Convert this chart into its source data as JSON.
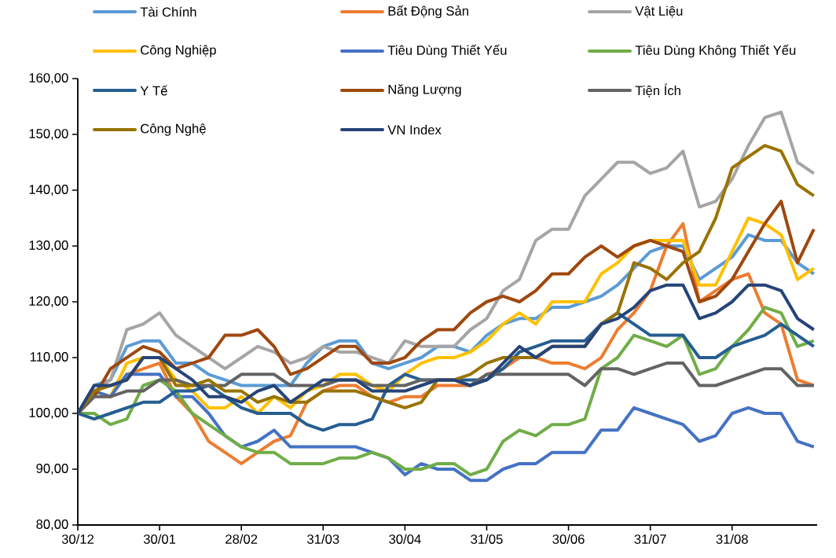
{
  "chart_data": {
    "type": "line",
    "legend": "top",
    "marker": "none",
    "line_style": "solid",
    "categories": [
      "30/12",
      null,
      null,
      null,
      null,
      "30/01",
      null,
      null,
      null,
      null,
      "28/02",
      null,
      null,
      null,
      null,
      "31/03",
      null,
      null,
      null,
      null,
      "30/04",
      null,
      null,
      null,
      null,
      "31/05",
      null,
      null,
      null,
      null,
      "30/06",
      null,
      null,
      null,
      null,
      "31/07",
      null,
      null,
      null,
      null,
      "31/08",
      null,
      null,
      null,
      null,
      null
    ],
    "ylim": [
      80,
      160
    ],
    "yticks": [
      {
        "value": 80,
        "label": "80,00"
      },
      {
        "value": 90,
        "label": "90,00"
      },
      {
        "value": 100,
        "label": "100,00"
      },
      {
        "value": 110,
        "label": "110,00"
      },
      {
        "value": 120,
        "label": "120,00"
      },
      {
        "value": 130,
        "label": "130,00"
      },
      {
        "value": 140,
        "label": "140,00"
      },
      {
        "value": 150,
        "label": "150,00"
      },
      {
        "value": 160,
        "label": "160,00"
      }
    ],
    "series": [
      {
        "name": "Tài Chính",
        "color": "#5b9bd5",
        "values": [
          100,
          105,
          106,
          112,
          113,
          113,
          109,
          109,
          107,
          106,
          105,
          105,
          105,
          105,
          109,
          112,
          113,
          113,
          109,
          108,
          109,
          110,
          112,
          112,
          111,
          114,
          116,
          117,
          117,
          119,
          119,
          120,
          121,
          123,
          126,
          129,
          130,
          130,
          124,
          126,
          128,
          132,
          131,
          131,
          127,
          125
        ]
      },
      {
        "name": "Bất Động Sản",
        "color": "#ed7d31",
        "values": [
          null,
          null,
          103,
          107,
          108,
          109,
          103,
          100,
          95,
          93,
          91,
          93,
          95,
          96,
          102,
          104,
          105,
          105,
          103,
          102,
          103,
          103,
          105,
          105,
          105,
          107,
          108,
          110,
          110,
          109,
          109,
          108,
          110,
          115,
          118,
          122,
          130,
          134,
          120,
          122,
          124,
          125,
          118,
          116,
          106,
          105
        ]
      },
      {
        "name": "Vật Liệu",
        "color": "#a5a5a5",
        "values": [
          100,
          104,
          106,
          115,
          116,
          118,
          114,
          112,
          110,
          108,
          110,
          112,
          111,
          109,
          110,
          112,
          111,
          111,
          110,
          109,
          113,
          112,
          112,
          112,
          115,
          117,
          122,
          124,
          131,
          133,
          133,
          139,
          142,
          145,
          145,
          143,
          144,
          147,
          137,
          138,
          142,
          148,
          153,
          154,
          145,
          143
        ]
      },
      {
        "name": "Công Nghiệp",
        "color": "#ffc000",
        "values": [
          100,
          104,
          103,
          109,
          110,
          110,
          106,
          104,
          101,
          101,
          103,
          100,
          103,
          101,
          104,
          105,
          107,
          107,
          105,
          104,
          107,
          109,
          110,
          110,
          111,
          113,
          116,
          118,
          116,
          120,
          120,
          120,
          125,
          127,
          130,
          131,
          131,
          131,
          123,
          123,
          129,
          135,
          134,
          132,
          124,
          126
        ]
      },
      {
        "name": "Tiêu Dùng Thiết Yếu",
        "color": "#4472c4",
        "values": [
          100,
          104,
          103,
          107,
          107,
          107,
          103,
          103,
          100,
          96,
          94,
          95,
          97,
          94,
          94,
          94,
          94,
          94,
          93,
          92,
          89,
          91,
          90,
          90,
          88,
          88,
          90,
          91,
          91,
          93,
          93,
          93,
          97,
          97,
          101,
          100,
          99,
          98,
          95,
          96,
          100,
          101,
          100,
          100,
          95,
          94
        ]
      },
      {
        "name": "Tiêu Dùng Không Thiết Yếu",
        "color": "#70ad47",
        "values": [
          100,
          100,
          98,
          99,
          105,
          106,
          104,
          100,
          98,
          96,
          94,
          93,
          93,
          91,
          91,
          91,
          92,
          92,
          93,
          92,
          90,
          90,
          91,
          91,
          89,
          90,
          95,
          97,
          96,
          98,
          98,
          99,
          108,
          110,
          114,
          113,
          112,
          114,
          107,
          108,
          112,
          115,
          119,
          118,
          112,
          113
        ]
      },
      {
        "name": "Y Tế",
        "color": "#255e91",
        "values": [
          100,
          99,
          100,
          101,
          102,
          102,
          104,
          104,
          105,
          103,
          101,
          100,
          100,
          100,
          98,
          97,
          98,
          98,
          99,
          105,
          107,
          106,
          106,
          106,
          106,
          106,
          108,
          111,
          112,
          113,
          113,
          113,
          116,
          118,
          116,
          114,
          114,
          114,
          110,
          110,
          112,
          113,
          114,
          116,
          114,
          112
        ]
      },
      {
        "name": "Năng Lượng",
        "color": "#9e480e",
        "values": [
          100,
          103,
          108,
          110,
          112,
          111,
          108,
          109,
          110,
          114,
          114,
          115,
          112,
          107,
          108,
          110,
          112,
          112,
          109,
          109,
          110,
          113,
          115,
          115,
          118,
          120,
          121,
          120,
          122,
          125,
          125,
          128,
          130,
          128,
          130,
          131,
          130,
          129,
          120,
          121,
          124,
          129,
          134,
          138,
          127,
          133
        ]
      },
      {
        "name": "Tiện Ích",
        "color": "#636363",
        "values": [
          100,
          103,
          103,
          104,
          104,
          106,
          106,
          105,
          105,
          105,
          107,
          107,
          107,
          105,
          105,
          105,
          106,
          106,
          105,
          105,
          105,
          106,
          106,
          106,
          105,
          107,
          107,
          107,
          107,
          107,
          107,
          105,
          108,
          108,
          107,
          108,
          109,
          109,
          105,
          105,
          106,
          107,
          108,
          108,
          105,
          105
        ]
      },
      {
        "name": "Công Nghệ",
        "color": "#997300",
        "values": [
          100,
          104,
          105,
          106,
          110,
          110,
          105,
          105,
          106,
          104,
          104,
          102,
          103,
          102,
          102,
          104,
          104,
          104,
          103,
          102,
          101,
          102,
          106,
          106,
          107,
          109,
          110,
          110,
          110,
          112,
          112,
          112,
          116,
          118,
          127,
          126,
          124,
          127,
          129,
          135,
          144,
          146,
          148,
          147,
          141,
          139
        ]
      },
      {
        "name": "VN Index",
        "color": "#264478",
        "values": [
          100,
          105,
          105,
          106,
          110,
          110,
          108,
          106,
          103,
          103,
          102,
          104,
          105,
          102,
          104,
          106,
          106,
          106,
          104,
          104,
          104,
          105,
          106,
          106,
          105,
          106,
          109,
          112,
          110,
          112,
          112,
          112,
          116,
          117,
          119,
          122,
          123,
          123,
          117,
          118,
          120,
          123,
          123,
          122,
          117,
          115
        ]
      }
    ]
  }
}
